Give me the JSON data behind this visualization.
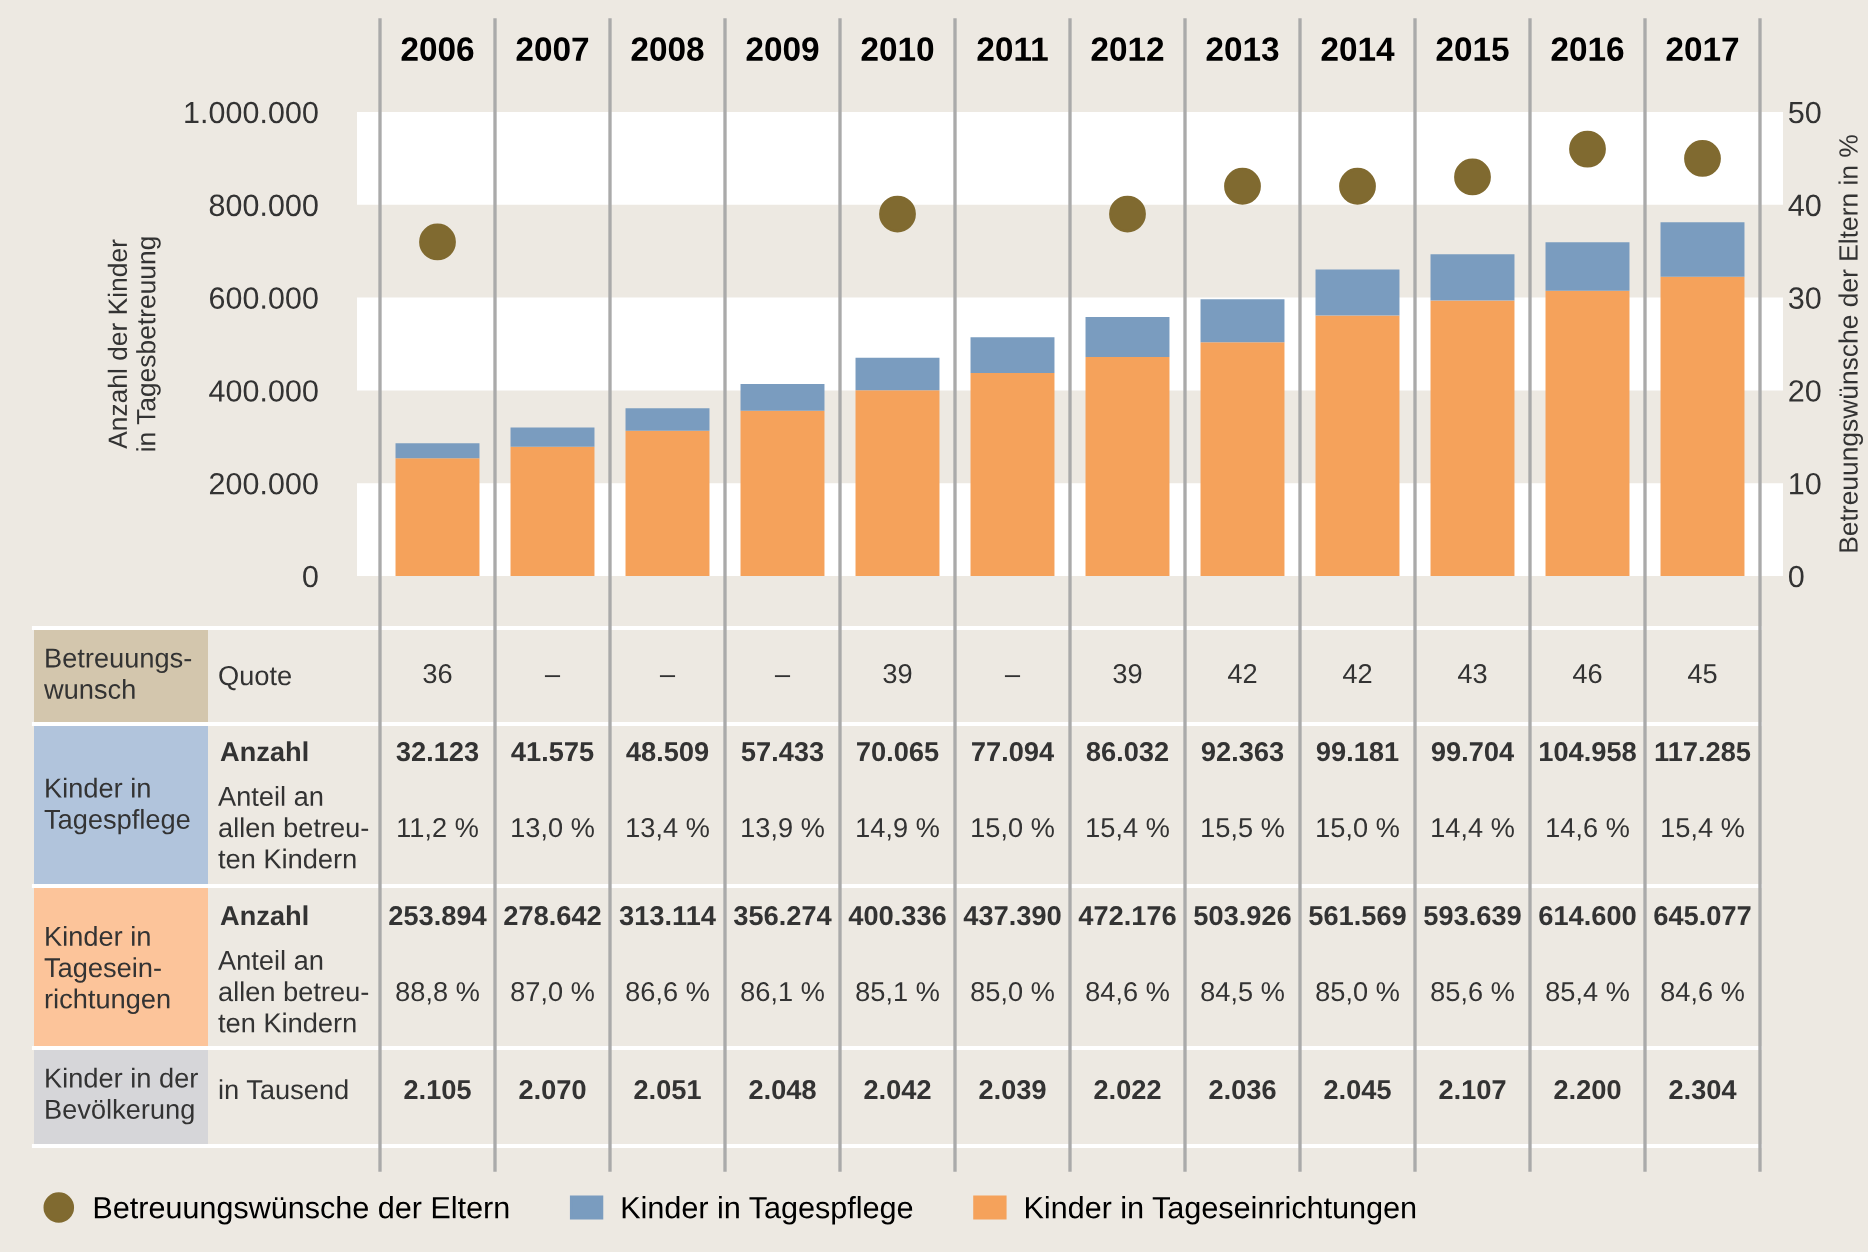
{
  "chart_data": {
    "type": "bar",
    "stacked": true,
    "categories": [
      "2006",
      "2007",
      "2008",
      "2009",
      "2010",
      "2011",
      "2012",
      "2013",
      "2014",
      "2015",
      "2016",
      "2017"
    ],
    "ylabel": "Anzahl der Kinder\nin Tagesbetreuung",
    "y2label": "Betreuungswünsche der Eltern in %",
    "ylim": [
      0,
      1000000
    ],
    "yticks": [
      {
        "value": 0,
        "label": "0"
      },
      {
        "value": 200000,
        "label": "200.000"
      },
      {
        "value": 400000,
        "label": "400.000"
      },
      {
        "value": 600000,
        "label": "600.000"
      },
      {
        "value": 800000,
        "label": "800.000"
      },
      {
        "value": 1000000,
        "label": "1.000.000"
      }
    ],
    "y2lim": [
      0,
      50
    ],
    "y2ticks": [
      0,
      10,
      20,
      30,
      40,
      50
    ],
    "legend": "bottom",
    "series": [
      {
        "name": "Kinder in Tageseinrichtungen",
        "color": "#f5a25b",
        "values": [
          253894,
          278642,
          313114,
          356274,
          400336,
          437390,
          472176,
          503926,
          561569,
          593639,
          614600,
          645077
        ],
        "value_labels": [
          "253.894",
          "278.642",
          "313.114",
          "356.274",
          "400.336",
          "437.390",
          "472.176",
          "503.926",
          "561.569",
          "593.639",
          "614.600",
          "645.077"
        ]
      },
      {
        "name": "Kinder in Tagespflege",
        "color": "#7a9cbf",
        "values": [
          32123,
          41575,
          48509,
          57433,
          70065,
          77094,
          86032,
          92363,
          99181,
          99704,
          104958,
          117285
        ],
        "value_labels": [
          "32.123",
          "41.575",
          "48.509",
          "57.433",
          "70.065",
          "77.094",
          "86.032",
          "92.363",
          "99.181",
          "99.704",
          "104.958",
          "117.285"
        ]
      },
      {
        "name": "Betreuungswünsche der Eltern",
        "type": "scatter",
        "axis": "y2",
        "marker": "circle",
        "color": "#806a30",
        "values": [
          36,
          null,
          null,
          null,
          39,
          null,
          39,
          42,
          42,
          43,
          46,
          45
        ],
        "value_labels": [
          "36",
          "–",
          "–",
          "–",
          "39",
          "–",
          "39",
          "42",
          "42",
          "43",
          "46",
          "45"
        ]
      }
    ],
    "annotations": [
      "Betreuungs-\nwunsch",
      "Quote",
      "Kinder in\nTagespflege",
      "Anzahl",
      "Anteil an\nallen betreu-\nten Kindern",
      "11,2 %",
      "13,0 %",
      "13,4 %",
      "13,9 %",
      "14,9 %",
      "15,0 %",
      "15,4 %",
      "15,5 %",
      "15,0 %",
      "14,4 %",
      "14,6 %",
      "15,4 %",
      "Kinder in\nTagesein-\nrichtungen",
      "Anzahl",
      "Anteil an\nallen betreu-\nten Kindern",
      "88,8 %",
      "87,0 %",
      "86,6 %",
      "86,1 %",
      "85,1 %",
      "85,0 %",
      "84,6 %",
      "84,5 %",
      "85,0 %",
      "85,6 %",
      "85,4 %",
      "84,6 %",
      "Kinder in der\nBevölkerung",
      "in Tausend",
      "2.105",
      "2.070",
      "2.051",
      "2.048",
      "2.042",
      "2.039",
      "2.022",
      "2.036",
      "2.045",
      "2.107",
      "2.200",
      "2.304"
    ]
  }
}
